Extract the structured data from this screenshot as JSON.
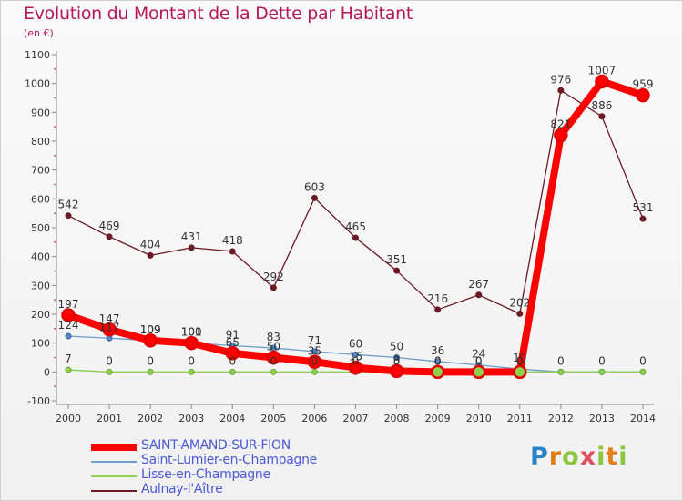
{
  "title": "Evolution du Montant de la Dette par Habitant",
  "subtitle": "(en €)",
  "logo": {
    "letters": [
      "P",
      "r",
      "o",
      "x",
      "i",
      "t",
      "i"
    ],
    "colors": [
      "#2a86c8",
      "#e27f1b",
      "#8cc63f",
      "#e04d5c",
      "#8cc63f",
      "#e27f1b",
      "#8cc63f"
    ]
  },
  "chart_data": {
    "type": "line",
    "x": [
      2000,
      2001,
      2002,
      2003,
      2004,
      2005,
      2006,
      2007,
      2008,
      2009,
      2010,
      2011,
      2012,
      2013,
      2014
    ],
    "ylim": [
      -100,
      1100
    ],
    "yticks": [
      -100,
      0,
      100,
      200,
      300,
      400,
      500,
      600,
      700,
      800,
      900,
      1000,
      1100
    ],
    "grid": false,
    "legend": "bottom-left",
    "series": [
      {
        "name": "Aulnay-l'Aître",
        "color": "#6b1a24",
        "values": [
          542,
          469,
          404,
          431,
          418,
          292,
          603,
          465,
          351,
          216,
          267,
          202,
          976,
          886,
          531
        ]
      },
      {
        "name": "Saint-Lumier-en-Champagne",
        "color": "#6f9ecd",
        "values": [
          124,
          117,
          109,
          101,
          91,
          83,
          71,
          60,
          50,
          36,
          24,
          10,
          0,
          0,
          0
        ]
      },
      {
        "name": "Lisse-en-Champagne",
        "color": "#8fd14f",
        "values": [
          7,
          0,
          0,
          0,
          0,
          0,
          0,
          0,
          0,
          0,
          0,
          0,
          0,
          0,
          0
        ]
      },
      {
        "name": "SAINT-AMAND-SUR-FION",
        "color": "#ff0000",
        "values": [
          197,
          147,
          109,
          100,
          65,
          50,
          35,
          15,
          3,
          0,
          0,
          0,
          821,
          1007,
          959
        ]
      }
    ],
    "data_labels": [
      {
        "series": 0,
        "texts": [
          "542",
          "469",
          "404",
          "431",
          "418",
          "292",
          "603",
          "465",
          "351",
          "216",
          "267",
          "202",
          "976",
          "886",
          "531"
        ]
      },
      {
        "series": 1,
        "texts": [
          "124",
          "117",
          "109",
          "101",
          "91",
          "83",
          "71",
          "60",
          "50",
          "36",
          "24",
          "10",
          "",
          "",
          ""
        ]
      },
      {
        "series": 2,
        "texts": [
          "7",
          "0",
          "0",
          "0",
          "0",
          "0",
          "0",
          "0",
          "0",
          "0",
          "0",
          "0",
          "0",
          "0",
          "0"
        ]
      },
      {
        "series": 3,
        "texts": [
          "197",
          "147",
          "109",
          "100",
          "65",
          "50",
          "35",
          "15",
          "3",
          "0",
          "0",
          "0",
          "821",
          "1007",
          "959"
        ]
      }
    ],
    "legend_order": [
      3,
      1,
      2,
      0
    ]
  }
}
